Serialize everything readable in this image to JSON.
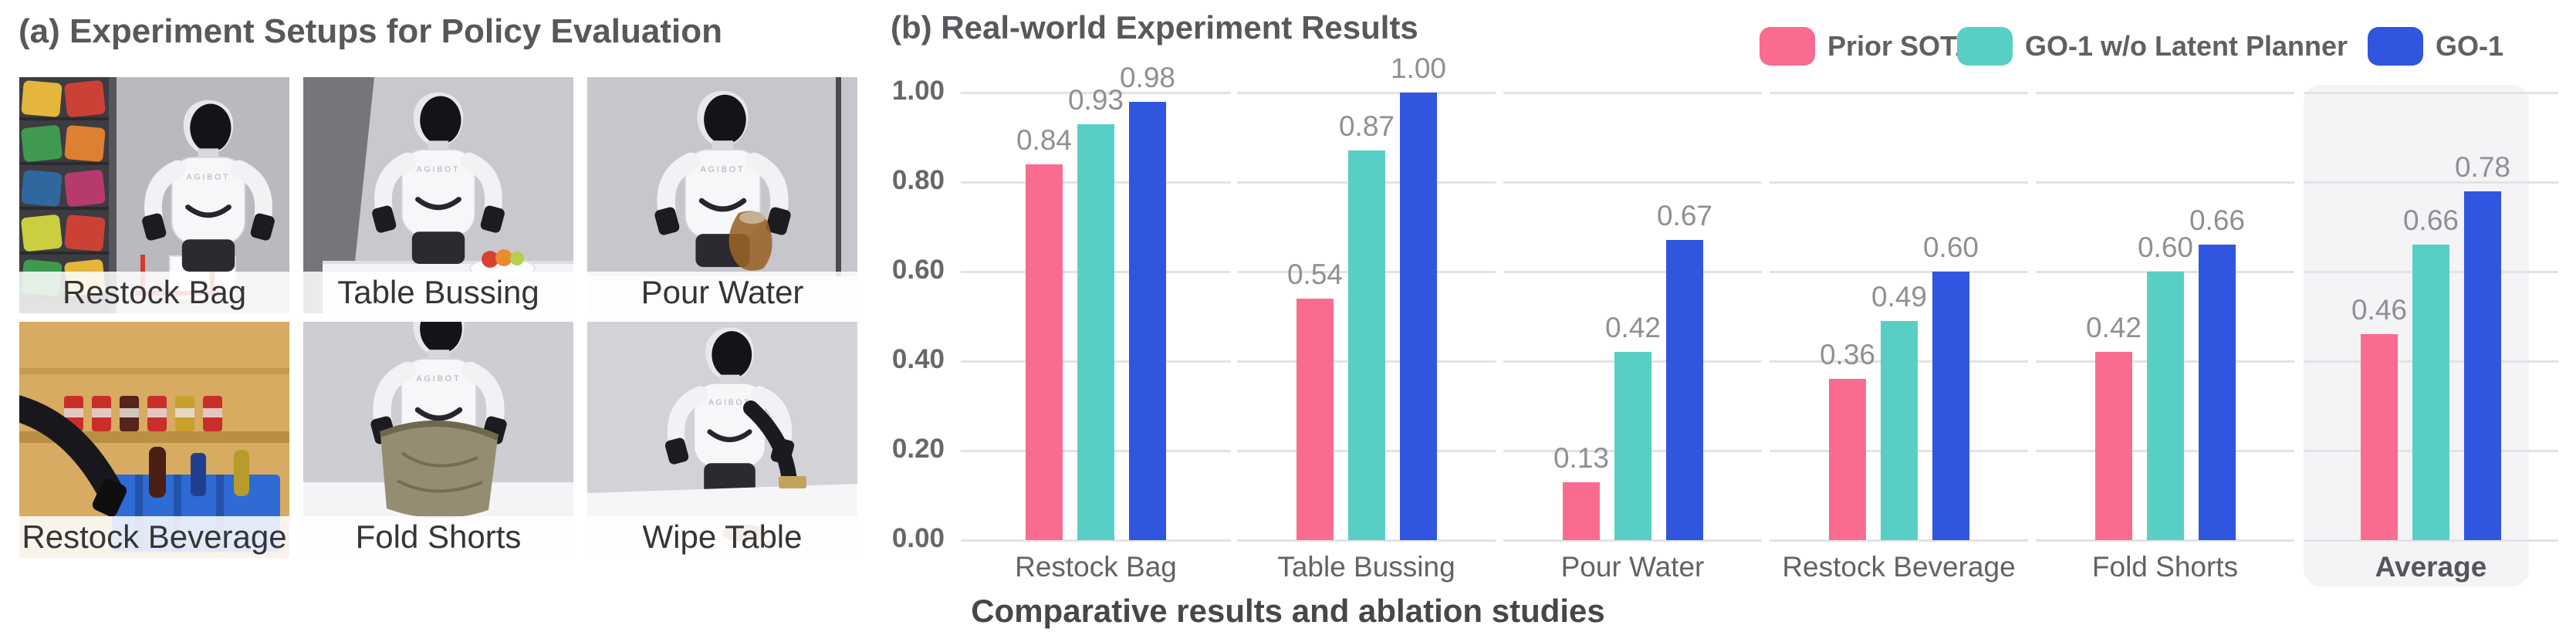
{
  "panel_a": {
    "title": "(a) Experiment Setups for Policy Evaluation",
    "tiles": [
      {
        "label": "Restock Bag",
        "scene": "restock-bag"
      },
      {
        "label": "Table Bussing",
        "scene": "table-bussing"
      },
      {
        "label": "Pour Water",
        "scene": "pour-water"
      },
      {
        "label": "Restock Beverage",
        "scene": "restock-beverage"
      },
      {
        "label": "Fold Shorts",
        "scene": "fold-shorts"
      },
      {
        "label": "Wipe Table",
        "scene": "wipe-table"
      }
    ]
  },
  "panel_b": {
    "title": "(b) Real-world Experiment Results",
    "caption": "Comparative results and ablation studies"
  },
  "chart_data": {
    "type": "bar",
    "title": "(b) Real-world Experiment Results",
    "categories": [
      "Restock Bag",
      "Table Bussing",
      "Pour Water",
      "Restock Beverage",
      "Fold Shorts",
      "Average"
    ],
    "series": [
      {
        "name": "Prior SOTA",
        "color": "#FA6C8F",
        "values": [
          0.84,
          0.54,
          0.13,
          0.36,
          0.42,
          0.46
        ]
      },
      {
        "name": "GO-1 w/o Latent Planner",
        "color": "#58CFC4",
        "values": [
          0.93,
          0.87,
          0.42,
          0.49,
          0.6,
          0.66
        ]
      },
      {
        "name": "GO-1",
        "color": "#3056E0",
        "values": [
          0.98,
          1.0,
          0.67,
          0.6,
          0.66,
          0.78
        ]
      }
    ],
    "ylim": [
      0,
      1.0
    ],
    "yticks": [
      "0.00",
      "0.20",
      "0.40",
      "0.60",
      "0.80",
      "1.00"
    ],
    "grid": true,
    "value_labels": true,
    "legend_position": "top-right",
    "highlight_category": "Average",
    "highlight_color": "#f4f4f6",
    "grid_color": "#e3e3e7"
  }
}
